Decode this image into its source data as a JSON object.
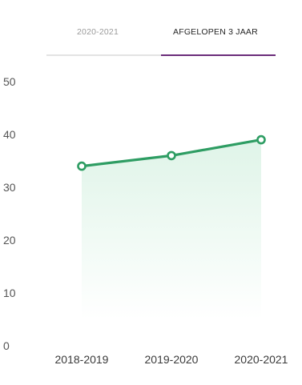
{
  "tabs": [
    {
      "label": "2020-2021",
      "active": false
    },
    {
      "label": "AFGELOPEN 3 JAAR",
      "active": true
    }
  ],
  "colors": {
    "accent": "#6b2c7a",
    "line": "#2e9d63",
    "area_top": "#dff4e8"
  },
  "chart_data": {
    "type": "line",
    "title": "",
    "xlabel": "",
    "ylabel": "",
    "categories": [
      "2018-2019",
      "2019-2020",
      "2020-2021"
    ],
    "series": [
      {
        "values": [
          34,
          36,
          39
        ]
      }
    ],
    "ylim": [
      0,
      50
    ],
    "yticks": [
      0,
      10,
      20,
      30,
      40,
      50
    ],
    "grid": false,
    "area_fill": true,
    "markers": "hollow-circle"
  }
}
